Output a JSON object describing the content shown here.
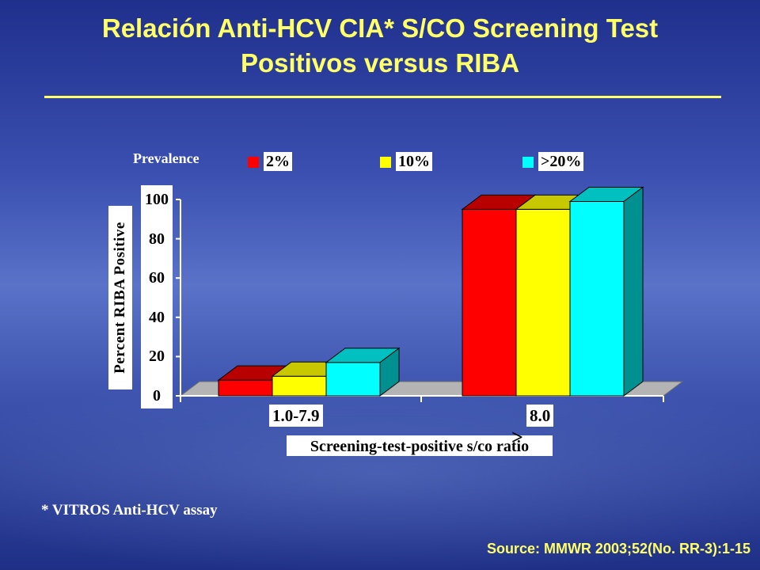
{
  "title_line1": "Relación Anti-HCV CIA* S/CO Screening Test",
  "title_line2": "Positivos  versus RIBA",
  "prevalence_label": "Prevalence",
  "footnote": "* VITROS Anti-HCV assay",
  "source": "Source: MMWR 2003;52(No. RR-3):1-15",
  "gte_symbol": ">",
  "colors": {
    "title": "#ffff66",
    "series_top": [
      "#b80000",
      "#c8c800",
      "#00c0c0"
    ],
    "series_side": [
      "#900000",
      "#a0a000",
      "#009090"
    ]
  },
  "chart_data": {
    "type": "bar",
    "categories": [
      "1.0-7.9",
      "8.0"
    ],
    "series": [
      {
        "name": "2%",
        "color": "#ff0000",
        "values": [
          8,
          95
        ]
      },
      {
        "name": "10%",
        "color": "#ffff00",
        "values": [
          10,
          95
        ]
      },
      {
        "name": ">20%",
        "color": "#00ffff",
        "values": [
          17,
          99
        ]
      }
    ],
    "ylabel": "Percent RIBA Positive",
    "xlabel": "Screening-test-positive s/co ratio",
    "ylim": [
      0,
      100
    ],
    "yticks": [
      0,
      20,
      40,
      60,
      80,
      100
    ],
    "legend_position": "top",
    "grid": false
  }
}
